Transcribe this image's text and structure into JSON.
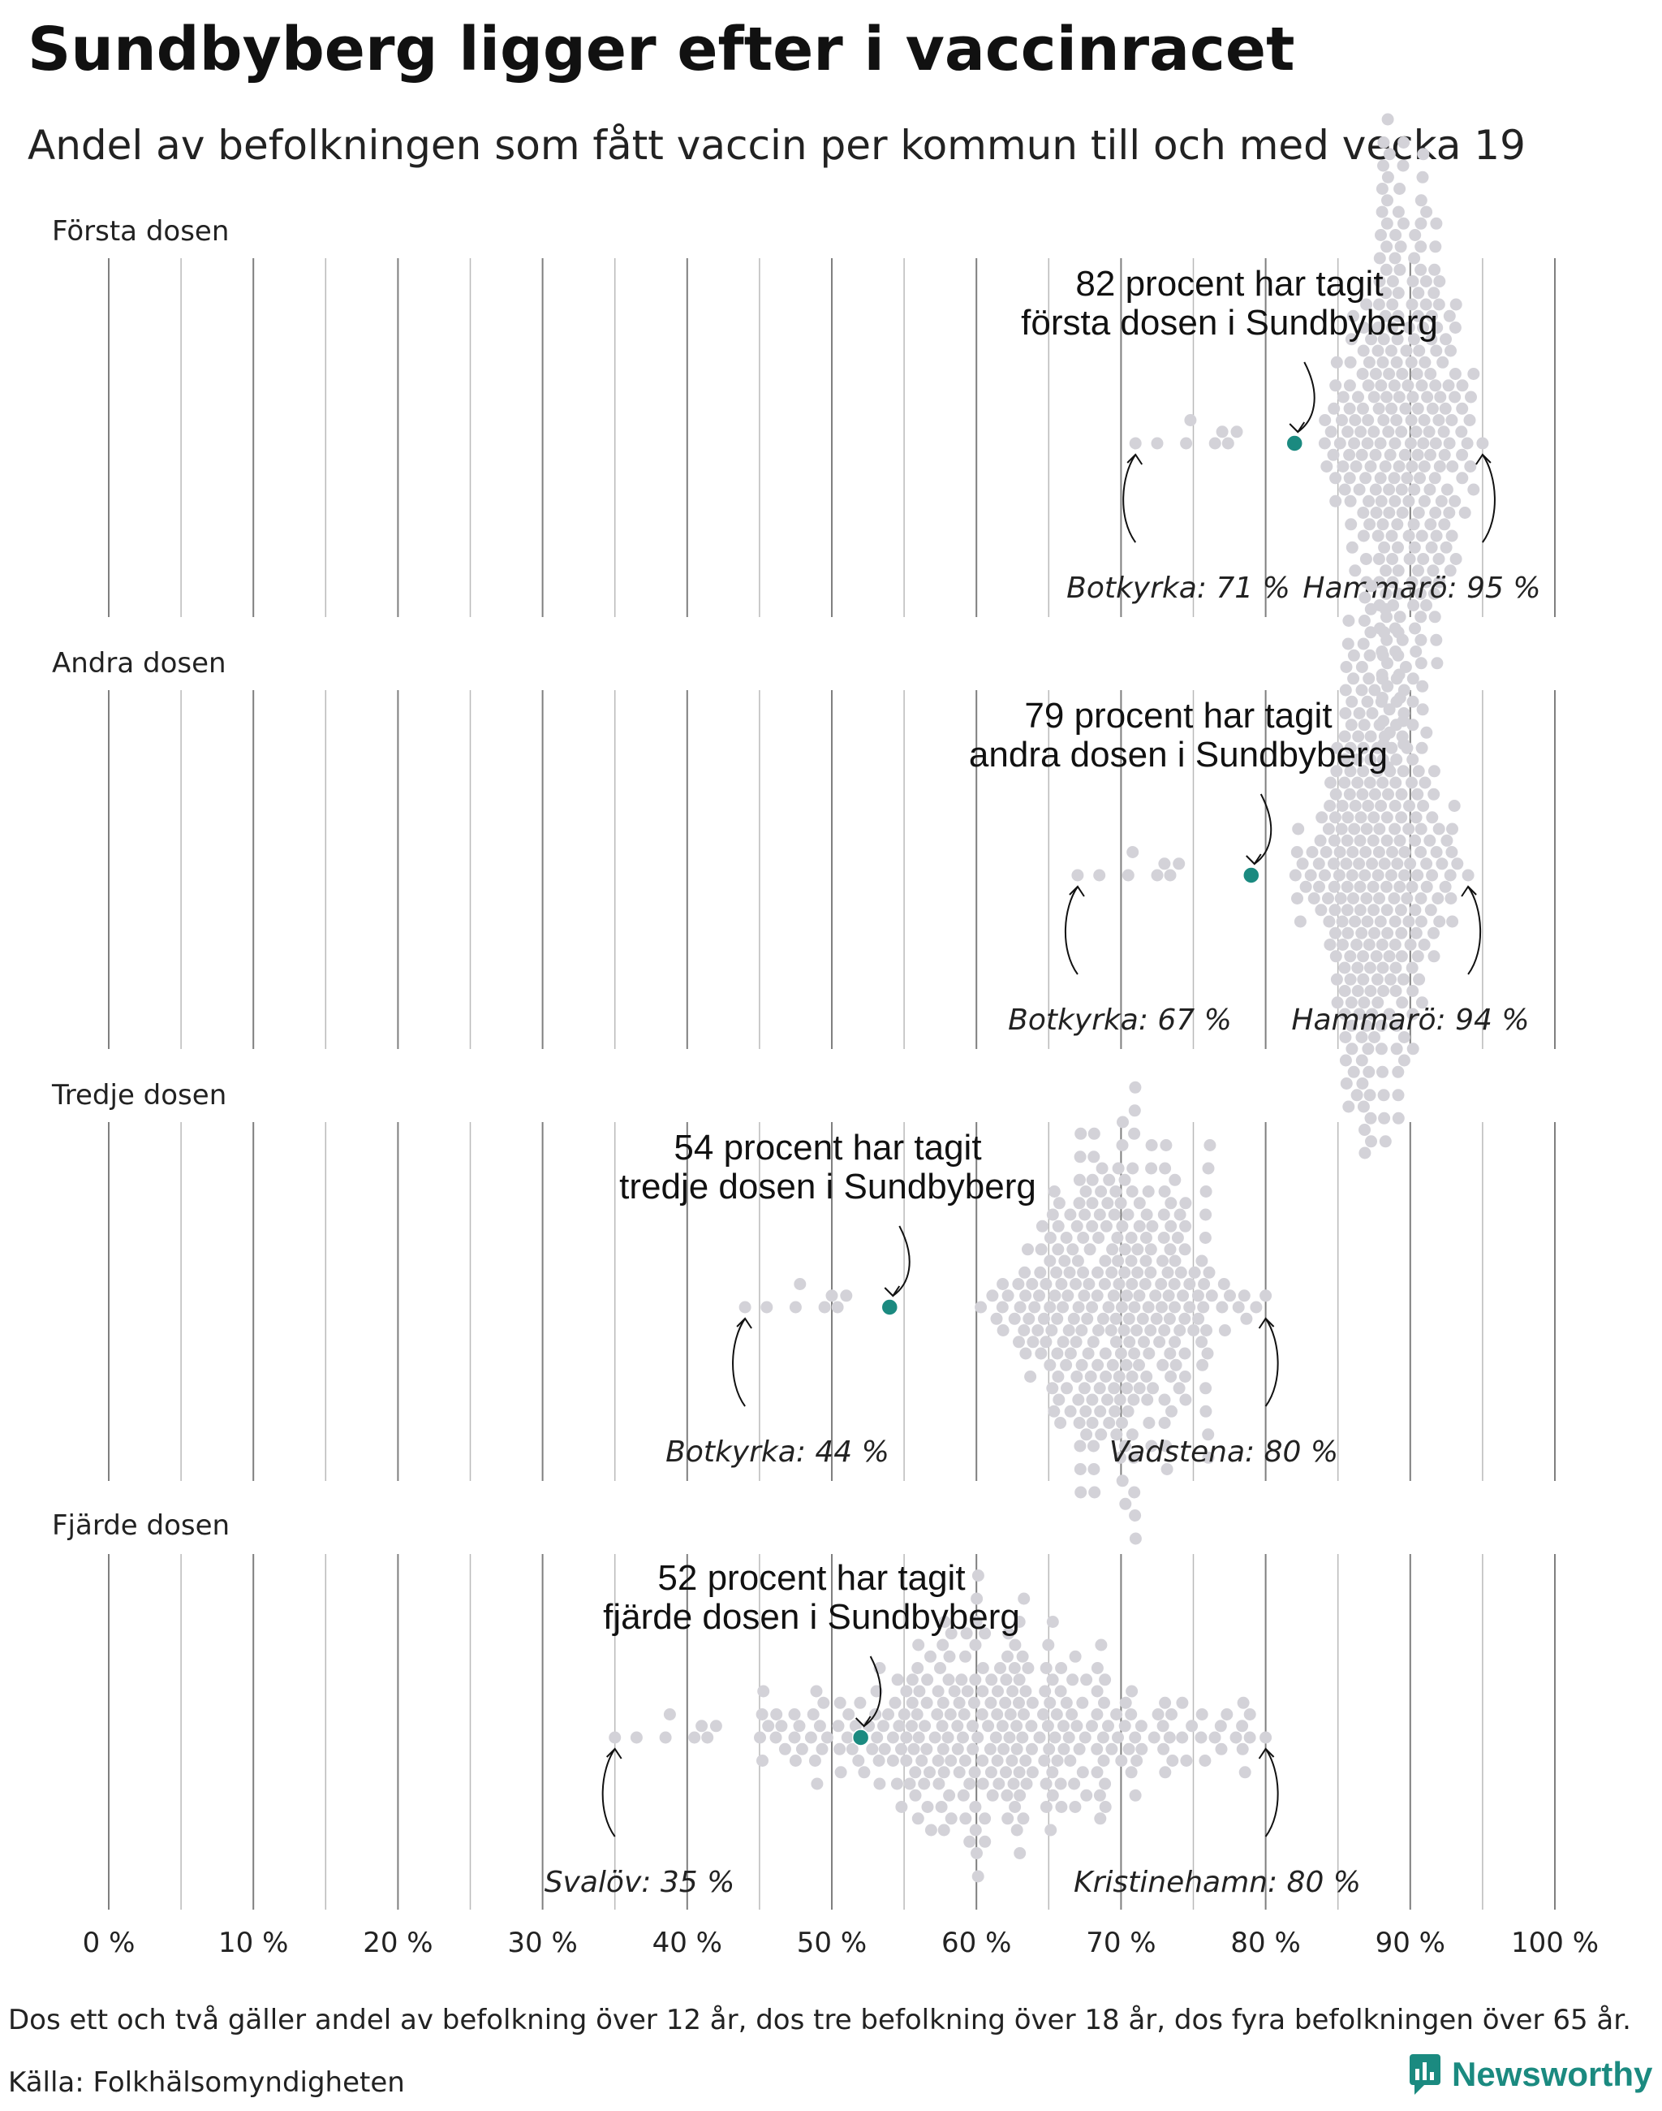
{
  "title": "Sundbyberg ligger efter i vaccinracet",
  "subtitle": "Andel av befolkningen som fått vaccin per kommun till och med vecka 19",
  "note": "Dos ett och två gäller andel av befolkning över 12 år, dos tre befolkning över 18 år, dos fyra befolkningen över 65 år.",
  "source": "Källa: Folkhälsomyndigheten",
  "logo": {
    "text": "Newsworthy",
    "icon": "newsworthy-logo-icon"
  },
  "colors": {
    "highlight": "#1b8a80",
    "dots": "#d3d2d8",
    "grid": "#8a8a8a",
    "text": "#111111"
  },
  "chart_data": {
    "type": "beeswarm",
    "xlim": [
      0,
      100
    ],
    "x_ticks": [
      0,
      10,
      20,
      30,
      40,
      50,
      60,
      70,
      80,
      90,
      100
    ],
    "x_tick_labels": [
      "0 %",
      "10 %",
      "20 %",
      "30 %",
      "40 %",
      "50 %",
      "60 %",
      "70 %",
      "80 %",
      "90 %",
      "100 %"
    ],
    "grid": true,
    "panels": [
      {
        "label": "Första dosen",
        "highlight": {
          "name": "Sundbyberg",
          "value": 82,
          "callout_line1": "82 procent har tagit",
          "callout_line2": "första dosen i Sundbyberg"
        },
        "min": {
          "label": "Botkyrka: 71 %",
          "value": 71
        },
        "max": {
          "label": "Hammarö: 95 %",
          "value": 95
        },
        "distribution": {
          "center": 89.5,
          "spread": 2.4
        }
      },
      {
        "label": "Andra dosen",
        "highlight": {
          "name": "Sundbyberg",
          "value": 79,
          "callout_line1": "79 procent har tagit",
          "callout_line2": "andra dosen i Sundbyberg"
        },
        "min": {
          "label": "Botkyrka: 67 %",
          "value": 67
        },
        "max": {
          "label": "Hammarö: 94 %",
          "value": 94
        },
        "distribution": {
          "center": 87.5,
          "spread": 2.5
        }
      },
      {
        "label": "Tredje dosen",
        "highlight": {
          "name": "Sundbyberg",
          "value": 54,
          "callout_line1": "54 procent har tagit",
          "callout_line2": "tredje dosen i Sundbyberg"
        },
        "min": {
          "label": "Botkyrka: 44 %",
          "value": 44
        },
        "max": {
          "label": "Vadstena: 80 %",
          "value": 80
        },
        "distribution": {
          "center": 70,
          "spread": 3.8
        }
      },
      {
        "label": "Fjärde dosen",
        "highlight": {
          "name": "Sundbyberg",
          "value": 52,
          "callout_line1": "52 procent har tagit",
          "callout_line2": "fjärde dosen i Sundbyberg"
        },
        "min": {
          "label": "Svalöv: 35 %",
          "value": 35
        },
        "max": {
          "label": "Kristinehamn: 80 %",
          "value": 80
        },
        "distribution": {
          "center": 62,
          "spread": 7.5
        }
      }
    ]
  }
}
